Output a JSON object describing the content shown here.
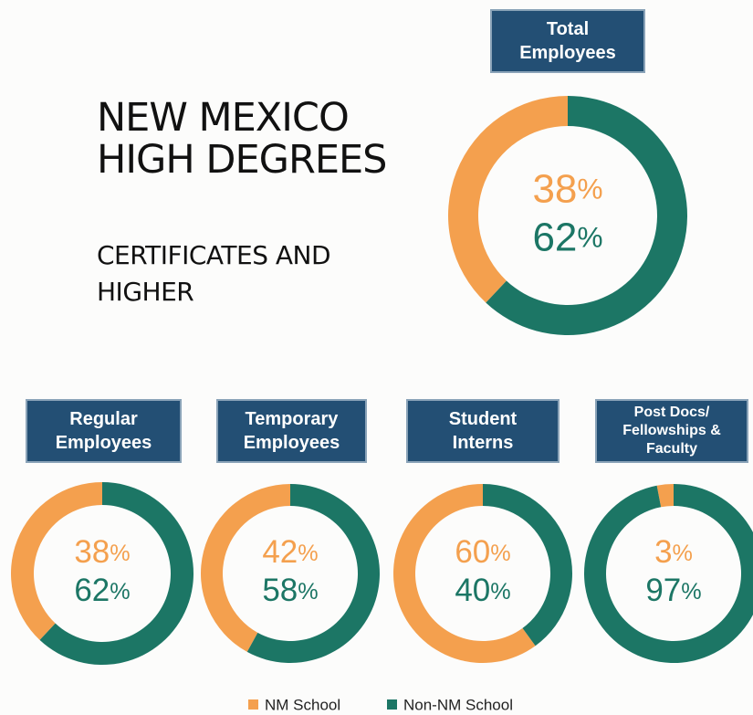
{
  "heading": {
    "title": "NEW MEXICO HIGH DEGREES",
    "subtitle": "CERTIFICATES AND HIGHER"
  },
  "legend": {
    "labels": [
      "NM School",
      "Non-NM School"
    ],
    "colors": [
      "#f4a04e",
      "#1c7665"
    ]
  },
  "chart_data": [
    {
      "type": "pie",
      "title": "Total Employees",
      "values": [
        38,
        62
      ],
      "value_labels": [
        "38%",
        "62%"
      ]
    },
    {
      "type": "pie",
      "title": "Regular Employees",
      "values": [
        38,
        62
      ],
      "value_labels": [
        "38%",
        "62%"
      ]
    },
    {
      "type": "pie",
      "title": "Temporary Employees",
      "values": [
        42,
        58
      ],
      "value_labels": [
        "42%",
        "58%"
      ]
    },
    {
      "type": "pie",
      "title": "Student Interns",
      "values": [
        60,
        40
      ],
      "value_labels": [
        "60%",
        "40%"
      ]
    },
    {
      "type": "pie",
      "title": "Post Docs/ Fellowships & Faculty",
      "values": [
        3,
        97
      ],
      "value_labels": [
        "3%",
        "97%"
      ]
    }
  ]
}
